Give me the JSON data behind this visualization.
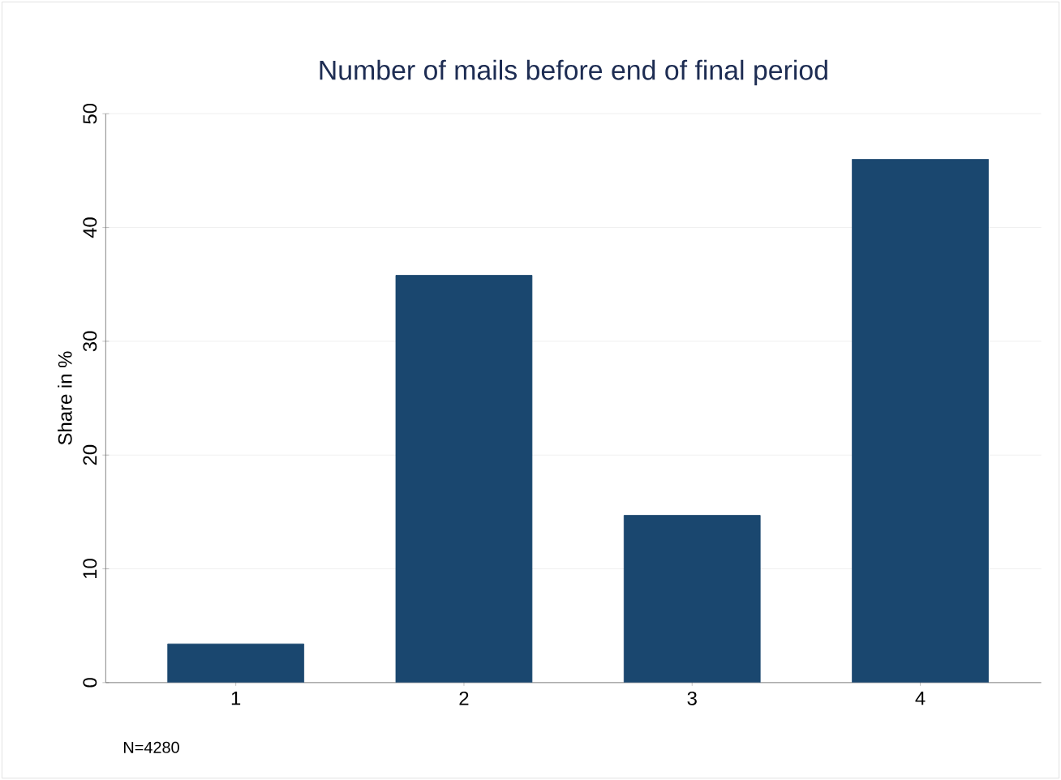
{
  "chart_data": {
    "type": "bar",
    "title": "Number of mails before end of final period",
    "ylabel": "Share in %",
    "categories": [
      "1",
      "2",
      "3",
      "4"
    ],
    "values": [
      3.4,
      35.8,
      14.7,
      46.0
    ],
    "color": "#1a476f",
    "ylim": [
      0,
      50
    ],
    "yticks": [
      0,
      10,
      20,
      30,
      40,
      50
    ],
    "grid": "y",
    "annotations": [
      "N=4280"
    ]
  }
}
